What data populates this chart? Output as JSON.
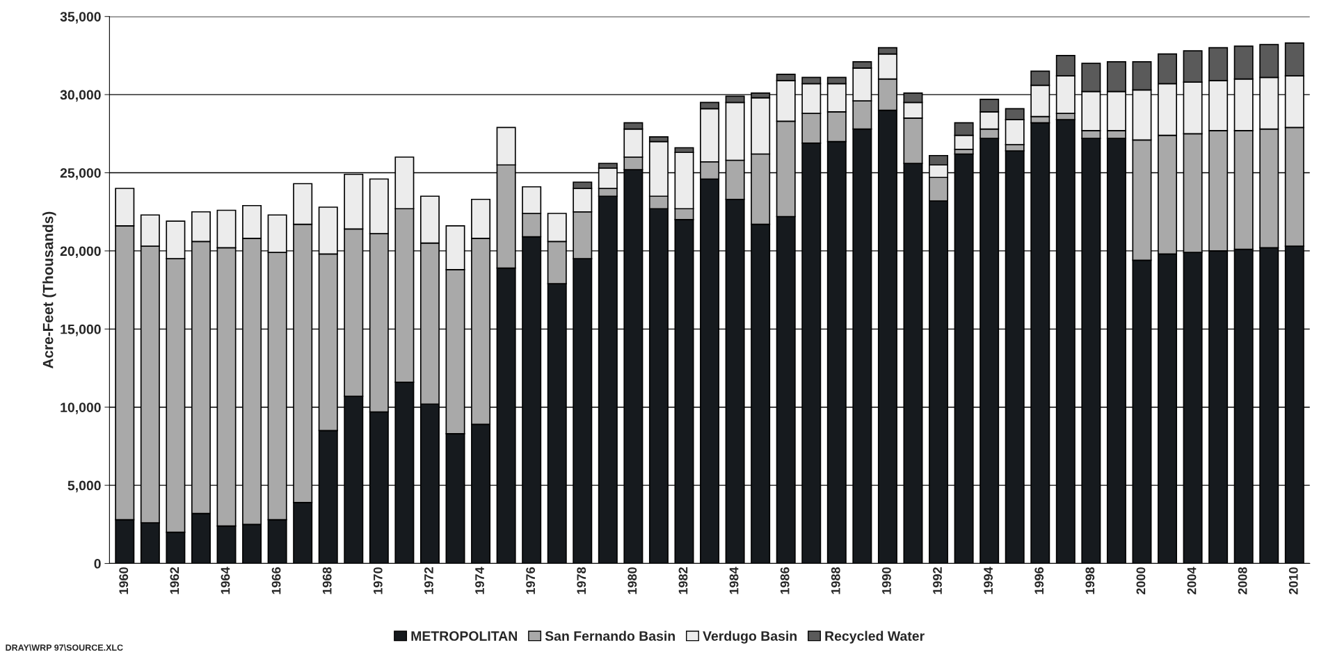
{
  "chart_data": {
    "type": "bar",
    "stacked": true,
    "ylabel": "Acre-Feet (Thousands)",
    "categories": [
      "1960",
      null,
      "1962",
      null,
      "1964",
      null,
      "1966",
      null,
      "1968",
      null,
      "1970",
      null,
      "1972",
      null,
      "1974",
      null,
      "1976",
      null,
      "1978",
      null,
      "1980",
      null,
      "1982",
      null,
      "1984",
      null,
      "1986",
      null,
      "1988",
      null,
      "1990",
      null,
      "1992",
      null,
      "1994",
      null,
      "1996",
      null,
      "1998",
      null,
      "2000",
      null,
      "2004",
      null,
      "2008",
      null,
      "2010"
    ],
    "series": [
      {
        "name": "METROPOLITAN",
        "color": "#161a1e",
        "values": [
          2800,
          2600,
          2000,
          3200,
          2400,
          2500,
          2800,
          3900,
          8500,
          10700,
          9700,
          11600,
          10200,
          8300,
          8900,
          18900,
          20900,
          17900,
          19500,
          23500,
          25200,
          22700,
          22000,
          24600,
          23300,
          21700,
          22200,
          26900,
          27000,
          27800,
          29000,
          25600,
          23200,
          26200,
          27200,
          26400,
          28200,
          28400,
          27200,
          27200,
          19400,
          19800,
          19900,
          20000,
          20100,
          20200,
          20300
        ]
      },
      {
        "name": "San Fernando Basin",
        "color": "#a9a9a9",
        "values": [
          18800,
          17700,
          17500,
          17400,
          17800,
          18300,
          17100,
          17800,
          11300,
          10700,
          11400,
          11100,
          10300,
          10500,
          11900,
          6600,
          1500,
          2700,
          3000,
          500,
          800,
          800,
          700,
          1100,
          2500,
          4500,
          6100,
          1900,
          1900,
          1800,
          2000,
          2900,
          1500,
          300,
          600,
          400,
          400,
          400,
          500,
          500,
          7700,
          7600,
          7600,
          7700,
          7600,
          7600,
          7600
        ]
      },
      {
        "name": "Verdugo Basin",
        "color": "#ececec",
        "values": [
          2400,
          2000,
          2400,
          1900,
          2400,
          2100,
          2400,
          2600,
          3000,
          3500,
          3500,
          3300,
          3000,
          2800,
          2500,
          2400,
          1700,
          1800,
          1500,
          1300,
          1800,
          3500,
          3600,
          3400,
          3700,
          3600,
          2600,
          1900,
          1800,
          2100,
          1600,
          1000,
          800,
          900,
          1100,
          1600,
          2000,
          2400,
          2500,
          2500,
          3200,
          3300,
          3300,
          3200,
          3300,
          3300,
          3300
        ]
      },
      {
        "name": "Recycled Water",
        "color": "#5a5a5a",
        "values": [
          null,
          null,
          null,
          null,
          null,
          null,
          null,
          null,
          null,
          null,
          null,
          null,
          null,
          null,
          null,
          null,
          null,
          null,
          400,
          300,
          400,
          300,
          300,
          400,
          400,
          300,
          400,
          400,
          400,
          400,
          400,
          600,
          600,
          800,
          800,
          700,
          900,
          1300,
          1800,
          1900,
          1800,
          1900,
          2000,
          2100,
          2100,
          2100,
          2100
        ]
      }
    ],
    "ylim": [
      0,
      35000
    ],
    "yticks": [
      0,
      {
        "value": 5000,
        "label": "5,000"
      },
      {
        "value": 10000,
        "label": "10,000"
      },
      {
        "value": 15000,
        "label": "15,000"
      },
      {
        "value": 20000,
        "label": "20,000"
      },
      {
        "value": 25000,
        "label": "25,000"
      },
      {
        "value": 30000,
        "label": "30,000"
      },
      {
        "value": 35000,
        "label": "35,000"
      }
    ],
    "grid": "y",
    "legend": "bottom",
    "annotations": [
      "DRAY\\WRP 97\\SOURCE.XLC"
    ]
  }
}
